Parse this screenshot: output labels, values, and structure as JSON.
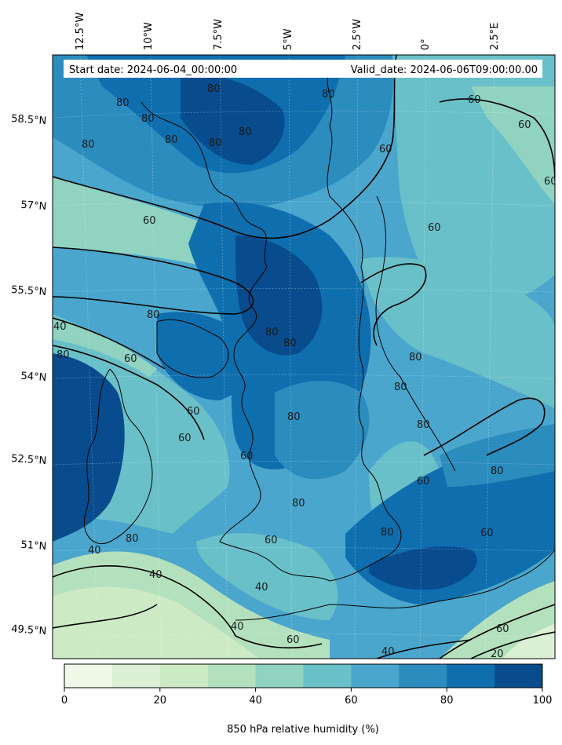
{
  "header": {
    "start_date": "Start date: 2024-06-04_00:00:00",
    "valid_date": "Valid_date: 2024-06-06T09:00:00.00"
  },
  "top_axis_labels": [
    "12.5°W",
    "10°W",
    "7.5°W",
    "5°W",
    "2.5°W",
    "0°",
    "2.5°E"
  ],
  "left_axis_labels": [
    "58.5°N",
    "57°N",
    "55.5°N",
    "54°N",
    "52.5°N",
    "51°N",
    "49.5°N"
  ],
  "contour_labels": [
    "80",
    "80",
    "80",
    "80",
    "80",
    "80",
    "80",
    "80",
    "60",
    "60",
    "60",
    "60",
    "60",
    "60",
    "80",
    "80",
    "80",
    "80",
    "80",
    "40",
    "80",
    "60",
    "60",
    "60",
    "60",
    "80",
    "80",
    "80",
    "80",
    "80",
    "60",
    "60",
    "60",
    "80",
    "40",
    "40",
    "40",
    "40",
    "60",
    "60",
    "40",
    "20"
  ],
  "colorbar": {
    "colors": [
      "#f0f9e8",
      "#dbf0d5",
      "#ccebc5",
      "#b4e1bd",
      "#8fd3c0",
      "#6ac0c9",
      "#4aa6cc",
      "#2b8cbe",
      "#0f6fae",
      "#084c8e"
    ],
    "tick_labels": [
      "0",
      "20",
      "40",
      "60",
      "80",
      "100"
    ],
    "label": "850 hPa relative humidity (%)"
  }
}
